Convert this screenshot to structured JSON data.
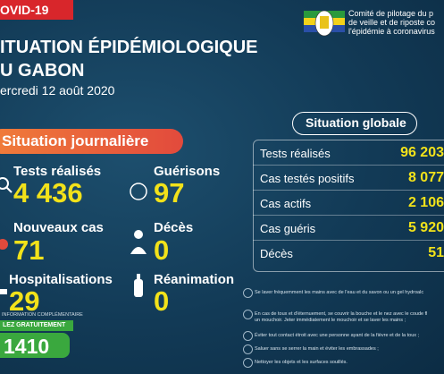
{
  "header": {
    "banner": "OVID-19",
    "title_line1": "ITUATION ÉPIDÉMIOLOGIQUE",
    "title_line2": "U GABON",
    "date": "ercredi 12 août 2020",
    "committee": [
      "Comité de pilotage du p",
      "de veille et de riposte co",
      "l'épidémie à coronavirus"
    ]
  },
  "daily": {
    "title": "Situation journalière",
    "items": [
      {
        "label": "Tests réalisés",
        "value": "4 436"
      },
      {
        "label": "Guérisons",
        "value": "97"
      },
      {
        "label": "Nouveaux cas",
        "value": "71"
      },
      {
        "label": "Décès",
        "value": "0"
      },
      {
        "label": "Hospitalisations",
        "value": "29"
      },
      {
        "label": "Réanimation",
        "value": "0"
      }
    ]
  },
  "hotline": {
    "label": "INFORMATION COMPLÉMENTAIRE",
    "call": "LEZ GRATUITEMENT",
    "number": "1410"
  },
  "global": {
    "title": "Situation globale",
    "rows": [
      {
        "label": "Tests réalisés",
        "value": "96 203"
      },
      {
        "label": "Cas testés positifs",
        "value": "8 077"
      },
      {
        "label": "Cas actifs",
        "value": "2 106"
      },
      {
        "label": "Cas guéris",
        "value": "5 920"
      },
      {
        "label": "Décès",
        "value": "51"
      }
    ]
  },
  "tips": [
    "Se laver fréquemment les mains avec de l'eau et du savon ou un gel hydroalc",
    "En cas de toux et d'éternuement, se couvrir la bouche et le nez avec le coude fl",
    "un mouchoir. Jeter immédiatement le mouchoir et se laver les mains ;",
    "Éviter tout contact étroit avec une personne ayant de la fièvre et de la toux ;",
    "Saluer sans se serrer la main et éviter les embrassades ;",
    "Nettoyer les objets et les surfaces souillés."
  ]
}
